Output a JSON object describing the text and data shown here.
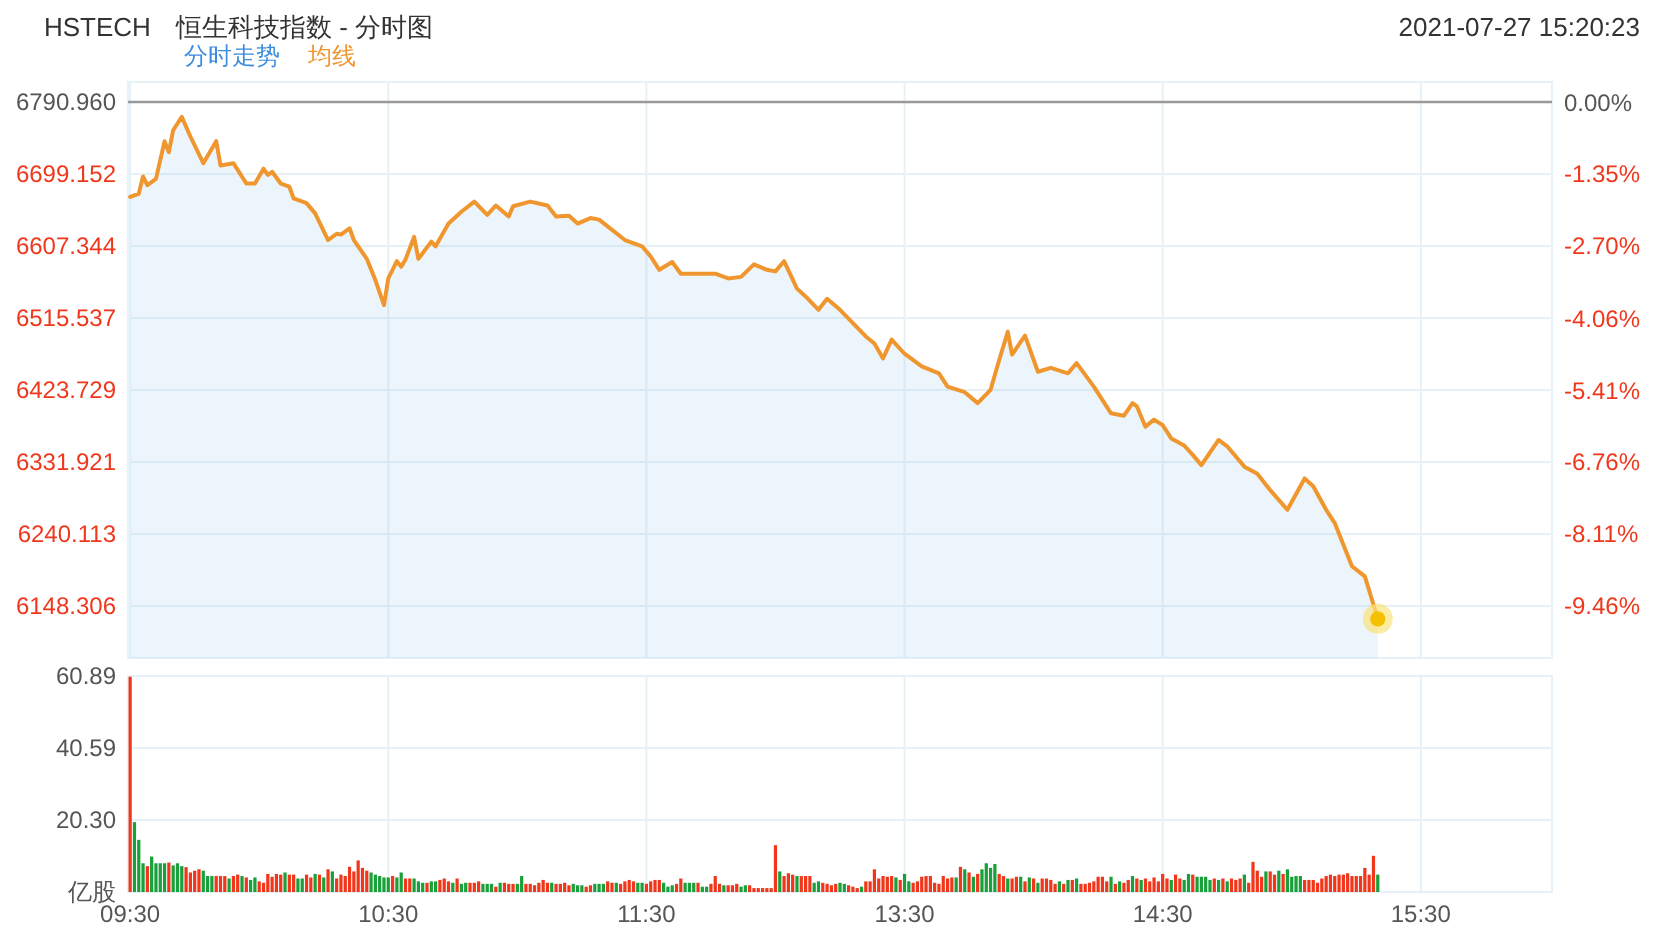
{
  "chart_data": [
    {
      "type": "area",
      "title": "HSTECH",
      "subtitle": "恒生科技指数 - 分时图",
      "annotations": [
        "2021-07-27 15:20:23"
      ],
      "categories": [
        null,
        null,
        null,
        null,
        null,
        null,
        null,
        null,
        null,
        null,
        null,
        null,
        null,
        null,
        null,
        null,
        null,
        null,
        null,
        null,
        null,
        null,
        null,
        null,
        null,
        null,
        null,
        null,
        null,
        null,
        null,
        null,
        null,
        null,
        null,
        null,
        null,
        null,
        null,
        null,
        null,
        null,
        null,
        null,
        null,
        null,
        null,
        null,
        null,
        null,
        null,
        null,
        null,
        null,
        null,
        null,
        null,
        null,
        null,
        null,
        null,
        null,
        null,
        null,
        null,
        null,
        null,
        null,
        null,
        null,
        null,
        null,
        null,
        null,
        null,
        null,
        null,
        null,
        null,
        null,
        null,
        null,
        null,
        null,
        null,
        null,
        null,
        null,
        null,
        null,
        null,
        null,
        null,
        null,
        null,
        null,
        null,
        null,
        null,
        null,
        null,
        null,
        null,
        null,
        null,
        null,
        null,
        null,
        null,
        null,
        null,
        null,
        null,
        null,
        null,
        null,
        null,
        null,
        null,
        null,
        null,
        null,
        null,
        null,
        null,
        null,
        null,
        null,
        null,
        null,
        null,
        null,
        null,
        null,
        null,
        null,
        null,
        null,
        null,
        null,
        null,
        null,
        null,
        null,
        null,
        null,
        null,
        null,
        null,
        null,
        null,
        null,
        null,
        null,
        null,
        null,
        null,
        null,
        null,
        null,
        null,
        null,
        null,
        null,
        null,
        null,
        null,
        null,
        null,
        null,
        null,
        null,
        null,
        null,
        null,
        null,
        null,
        null,
        null,
        null,
        null,
        null,
        null,
        null,
        null,
        null,
        null,
        null,
        null,
        null,
        null,
        null,
        null,
        null,
        null,
        null,
        null,
        null,
        null,
        null,
        null,
        null,
        null,
        null,
        null,
        null,
        null,
        null,
        null,
        null,
        null,
        null,
        null,
        null,
        null,
        null,
        null,
        null,
        null,
        null,
        null,
        null,
        null,
        null,
        null,
        null,
        null,
        null,
        null,
        null,
        null,
        null,
        null,
        null,
        null,
        null,
        null,
        null,
        null,
        null,
        null,
        null,
        null,
        null,
        null,
        null,
        null,
        null,
        null,
        null,
        null,
        null,
        null,
        null,
        null,
        null,
        null,
        null,
        null,
        null,
        null,
        null,
        null,
        null,
        null,
        null,
        null,
        null,
        null,
        null,
        null,
        null,
        null,
        null,
        null,
        null,
        null,
        null,
        null,
        null,
        null,
        null,
        null,
        null,
        null,
        null,
        null,
        null,
        null,
        null,
        null
      ],
      "series": [
        {
          "name": "分时走势",
          "color": "#3b8de0",
          "values": [
            6670,
            null,
            6674,
            6696,
            6685,
            null,
            6693,
            null,
            6741,
            6727,
            6755,
            null,
            6772,
            null,
            6747,
            null,
            null,
            6713,
            null,
            null,
            6741,
            6710,
            null,
            null,
            6713,
            null,
            null,
            6687,
            null,
            6687,
            null,
            6706,
            6698,
            6702,
            null,
            6687,
            null,
            6683,
            6668,
            null,
            null,
            6662,
            null,
            6649,
            null,
            null,
            6615,
            null,
            6623,
            6622,
            null,
            6630,
            6615,
            null,
            null,
            6591,
            null,
            6564,
            null,
            6532,
            6566,
            null,
            6588,
            6581,
            6590,
            null,
            6619,
            6591,
            null,
            null,
            6613,
            6607,
            null,
            null,
            6636,
            null,
            null,
            6651,
            null,
            null,
            6664,
            null,
            null,
            6647,
            null,
            6659,
            null,
            null,
            6645,
            6658,
            null,
            null,
            null,
            6664,
            null,
            null,
            null,
            6659,
            null,
            6645,
            null,
            null,
            6646,
            null,
            6636,
            null,
            null,
            6643,
            null,
            6641,
            null,
            null,
            null,
            null,
            null,
            6615,
            null,
            null,
            null,
            6607,
            null,
            6594,
            null,
            6577,
            null,
            null,
            6587,
            null,
            6572,
            null,
            null,
            null,
            null,
            null,
            null,
            null,
            6572,
            null,
            null,
            6566,
            null,
            null,
            6568,
            null,
            null,
            6584,
            null,
            null,
            6577,
            null,
            6575,
            null,
            6588,
            null,
            null,
            6553,
            null,
            6543,
            null,
            null,
            6526,
            null,
            6540,
            null,
            null,
            6526,
            null,
            null,
            6509,
            null,
            null,
            6492,
            null,
            6483,
            null,
            6464,
            null,
            6488,
            null,
            null,
            6470,
            null,
            null,
            null,
            6454,
            null,
            null,
            null,
            6445,
            null,
            6428,
            null,
            null,
            null,
            6421,
            null,
            null,
            6407,
            null,
            null,
            6424,
            null,
            6462,
            null,
            6498,
            6469,
            null,
            null,
            6493,
            null,
            null,
            6447,
            null,
            null,
            6452,
            null,
            null,
            null,
            6445,
            null,
            6458,
            null,
            null,
            null,
            6428,
            null,
            null,
            null,
            6394,
            null,
            null,
            6391,
            null,
            6407,
            6403,
            null,
            6377,
            null,
            6386,
            null,
            6379,
            null,
            6362,
            null,
            null,
            6353,
            null,
            6341,
            null,
            6328,
            null,
            null,
            null,
            6360,
            null,
            6352,
            null,
            null,
            null,
            6326,
            null,
            null,
            6317,
            null,
            null,
            6296,
            null,
            null,
            null,
            6271,
            null,
            null,
            null,
            6311,
            null,
            6301,
            null,
            null,
            6271,
            null,
            6254,
            null,
            null,
            null,
            6199,
            null,
            null,
            6186,
            null,
            null,
            6132
          ]
        },
        {
          "name": "均线",
          "type": "line",
          "color": "#f0962e",
          "values": [
            6670,
            null,
            6674,
            6696,
            6685,
            null,
            6693,
            null,
            6741,
            6727,
            6755,
            null,
            6772,
            null,
            6747,
            null,
            null,
            6713,
            null,
            null,
            6741,
            6710,
            null,
            null,
            6713,
            null,
            null,
            6687,
            null,
            6687,
            null,
            6706,
            6698,
            6702,
            null,
            6687,
            null,
            6683,
            6668,
            null,
            null,
            6662,
            null,
            6649,
            null,
            null,
            6615,
            null,
            6623,
            6622,
            null,
            6630,
            6615,
            null,
            null,
            6591,
            null,
            6564,
            null,
            6532,
            6566,
            null,
            6588,
            6581,
            6590,
            null,
            6619,
            6591,
            null,
            null,
            6613,
            6607,
            null,
            null,
            6636,
            null,
            null,
            6651,
            null,
            null,
            6664,
            null,
            null,
            6647,
            null,
            6659,
            null,
            null,
            6645,
            6658,
            null,
            null,
            null,
            6664,
            null,
            null,
            null,
            6659,
            null,
            6645,
            null,
            null,
            6646,
            null,
            6636,
            null,
            null,
            6643,
            null,
            6641,
            null,
            null,
            null,
            null,
            null,
            6615,
            null,
            null,
            null,
            6607,
            null,
            6594,
            null,
            6577,
            null,
            null,
            6587,
            null,
            6572,
            null,
            null,
            null,
            null,
            null,
            null,
            null,
            6572,
            null,
            null,
            6566,
            null,
            null,
            6568,
            null,
            null,
            6584,
            null,
            null,
            6577,
            null,
            6575,
            null,
            6588,
            null,
            null,
            6553,
            null,
            6543,
            null,
            null,
            6526,
            null,
            6540,
            null,
            null,
            6526,
            null,
            null,
            6509,
            null,
            null,
            6492,
            null,
            6483,
            null,
            6464,
            null,
            6488,
            null,
            null,
            6470,
            null,
            null,
            null,
            6454,
            null,
            null,
            null,
            6445,
            null,
            6428,
            null,
            null,
            null,
            6421,
            null,
            null,
            6407,
            null,
            null,
            6424,
            null,
            6462,
            null,
            6498,
            6469,
            null,
            null,
            6493,
            null,
            null,
            6447,
            null,
            null,
            6452,
            null,
            null,
            null,
            6445,
            null,
            6458,
            null,
            null,
            null,
            6428,
            null,
            null,
            null,
            6394,
            null,
            null,
            6391,
            null,
            6407,
            6403,
            null,
            6377,
            null,
            6386,
            null,
            6379,
            null,
            6362,
            null,
            null,
            6353,
            null,
            6341,
            null,
            6328,
            null,
            null,
            null,
            6360,
            null,
            6352,
            null,
            null,
            null,
            6326,
            null,
            null,
            6317,
            null,
            null,
            6296,
            null,
            null,
            null,
            6271,
            null,
            null,
            null,
            6311,
            null,
            6301,
            null,
            null,
            6271,
            null,
            6254,
            null,
            null,
            null,
            6199,
            null,
            null,
            6186,
            null,
            null,
            6132
          ]
        }
      ],
      "ylim": [
        6082,
        6816.5
      ],
      "yticks": [
        {
          "value": 6790.96,
          "label": "6790.960"
        },
        6699.152,
        6607.344,
        6515.537,
        6423.729,
        6331.921,
        6240.113,
        6148.306
      ],
      "y2lim": [
        -10.44,
        0.38
      ],
      "y2ticks": [
        {
          "value": 0,
          "label": "0.00%"
        },
        {
          "value": -1.35,
          "label": "-1.35%"
        },
        {
          "value": -2.7,
          "label": "-2.70%"
        },
        {
          "value": -4.06,
          "label": "-4.06%"
        },
        {
          "value": -5.41,
          "label": "-5.41%"
        },
        {
          "value": -6.76,
          "label": "-6.76%"
        },
        {
          "value": -8.11,
          "label": "-8.11%"
        },
        {
          "value": -9.46,
          "label": "-9.46%"
        }
      ],
      "ref_lines": [
        {
          "axis": "y",
          "value": 6790.96,
          "color": "#999999"
        }
      ],
      "tick_labels": "y",
      "grid": true,
      "legend": "top left"
    },
    {
      "type": "bar",
      "categories": [
        "09:30",
        null,
        null,
        null,
        null,
        null,
        null,
        null,
        null,
        null,
        null,
        null,
        null,
        null,
        null,
        null,
        null,
        null,
        null,
        null,
        null,
        null,
        null,
        null,
        null,
        null,
        null,
        null,
        null,
        null,
        null,
        null,
        null,
        null,
        null,
        null,
        null,
        null,
        null,
        null,
        null,
        null,
        null,
        null,
        null,
        null,
        null,
        null,
        null,
        null,
        null,
        null,
        null,
        null,
        null,
        null,
        null,
        null,
        null,
        null,
        "10:30",
        null,
        null,
        null,
        null,
        null,
        null,
        null,
        null,
        null,
        null,
        null,
        null,
        null,
        null,
        null,
        null,
        null,
        null,
        null,
        null,
        null,
        null,
        null,
        null,
        null,
        null,
        null,
        null,
        null,
        null,
        null,
        null,
        null,
        null,
        null,
        null,
        null,
        null,
        null,
        null,
        null,
        null,
        null,
        null,
        null,
        null,
        null,
        null,
        null,
        null,
        null,
        null,
        null,
        null,
        null,
        null,
        null,
        null,
        null,
        "11:30",
        null,
        null,
        null,
        null,
        null,
        null,
        null,
        null,
        null,
        null,
        null,
        null,
        null,
        null,
        null,
        null,
        null,
        null,
        null,
        null,
        null,
        null,
        null,
        null,
        null,
        null,
        null,
        null,
        null,
        null,
        null,
        null,
        null,
        null,
        null,
        null,
        null,
        null,
        null,
        null,
        null,
        null,
        null,
        null,
        null,
        null,
        null,
        null,
        null,
        null,
        null,
        null,
        null,
        null,
        null,
        null,
        null,
        null,
        null,
        "13:30",
        null,
        null,
        null,
        null,
        null,
        null,
        null,
        null,
        null,
        null,
        null,
        null,
        null,
        null,
        null,
        null,
        null,
        null,
        null,
        null,
        null,
        null,
        null,
        null,
        null,
        null,
        null,
        null,
        null,
        null,
        null,
        null,
        null,
        null,
        null,
        null,
        null,
        null,
        null,
        null,
        null,
        null,
        null,
        null,
        null,
        null,
        null,
        null,
        null,
        null,
        null,
        null,
        null,
        null,
        null,
        null,
        null,
        null,
        null,
        "14:30",
        null,
        null,
        null,
        null,
        null,
        null,
        null,
        null,
        null,
        null,
        null,
        null,
        null,
        null,
        null,
        null,
        null,
        null,
        null,
        null,
        null,
        null,
        null,
        null,
        null,
        null,
        null,
        null,
        null,
        null,
        null,
        null,
        null,
        null,
        null,
        null,
        null,
        null,
        null,
        null,
        null,
        null,
        null,
        null,
        null,
        null,
        null,
        null,
        null,
        null,
        null,
        null,
        null,
        null,
        null,
        null,
        null,
        null,
        null,
        "15:30",
        null,
        null,
        null,
        null,
        null,
        null,
        null,
        null,
        null,
        null,
        null,
        null,
        null,
        null,
        null,
        null,
        null,
        null,
        null,
        null,
        null,
        null,
        null,
        null,
        null,
        null,
        null,
        null,
        null,
        null
      ],
      "values": [
        60.7,
        19.7,
        14.7,
        8.1,
        7.3,
        10.0,
        8.1,
        8.1,
        8.1,
        8.3,
        7.5,
        8.1,
        7.3,
        7.0,
        5.5,
        6.0,
        6.4,
        6.0,
        4.5,
        4.5,
        4.5,
        4.5,
        4.5,
        3.8,
        4.5,
        4.9,
        4.5,
        4.1,
        3.4,
        4.1,
        3.0,
        2.6,
        5.1,
        4.3,
        5.1,
        4.9,
        5.5,
        4.9,
        4.9,
        3.8,
        3.8,
        4.9,
        4.1,
        5.1,
        4.9,
        4.1,
        6.4,
        5.8,
        3.8,
        4.9,
        4.5,
        7.1,
        5.8,
        8.9,
        6.8,
        6.0,
        5.5,
        4.9,
        4.5,
        4.1,
        4.1,
        4.5,
        4.1,
        5.5,
        3.8,
        3.8,
        3.8,
        3.0,
        2.6,
        2.6,
        3.0,
        3.0,
        3.4,
        3.8,
        3.0,
        2.6,
        3.8,
        2.3,
        2.6,
        2.6,
        2.6,
        3.0,
        2.3,
        2.3,
        2.3,
        1.5,
        2.6,
        2.6,
        2.3,
        2.3,
        2.3,
        4.5,
        2.3,
        2.3,
        1.9,
        2.6,
        3.4,
        2.6,
        2.6,
        2.3,
        2.3,
        2.6,
        1.9,
        2.3,
        1.9,
        1.9,
        1.5,
        1.9,
        2.3,
        2.3,
        2.3,
        3.0,
        2.6,
        2.6,
        2.3,
        3.0,
        3.4,
        3.0,
        2.6,
        2.6,
        2.3,
        3.0,
        3.4,
        3.4,
        2.6,
        1.5,
        1.9,
        2.3,
        3.8,
        2.6,
        2.6,
        2.6,
        2.6,
        1.5,
        1.5,
        2.3,
        4.5,
        2.3,
        1.9,
        1.9,
        1.9,
        2.3,
        1.5,
        1.9,
        1.9,
        1.1,
        1.1,
        1.1,
        1.1,
        1.1,
        13.2,
        5.8,
        4.5,
        5.3,
        4.9,
        4.5,
        4.5,
        4.5,
        4.5,
        2.6,
        3.0,
        2.6,
        2.3,
        1.9,
        2.3,
        2.6,
        2.3,
        1.9,
        1.5,
        1.1,
        1.5,
        3.0,
        3.0,
        6.4,
        3.8,
        4.5,
        4.3,
        4.5,
        4.1,
        3.4,
        5.1,
        3.0,
        2.6,
        3.0,
        4.3,
        4.5,
        4.5,
        2.6,
        2.3,
        4.5,
        3.8,
        4.1,
        4.1,
        7.1,
        6.4,
        5.5,
        4.3,
        5.1,
        6.4,
        8.1,
        6.8,
        7.9,
        5.1,
        4.5,
        3.8,
        3.8,
        4.3,
        4.3,
        3.0,
        4.1,
        3.8,
        2.6,
        3.8,
        3.8,
        3.4,
        2.3,
        3.0,
        2.3,
        3.4,
        3.4,
        3.8,
        2.3,
        2.3,
        2.6,
        3.0,
        4.3,
        4.3,
        3.0,
        4.3,
        2.3,
        3.0,
        2.6,
        3.4,
        4.5,
        3.8,
        3.4,
        3.8,
        3.0,
        4.1,
        3.0,
        5.1,
        3.8,
        3.4,
        4.9,
        3.8,
        3.4,
        5.1,
        4.9,
        4.3,
        4.3,
        4.3,
        3.4,
        3.8,
        3.4,
        3.8,
        3.0,
        3.8,
        3.4,
        3.8,
        4.9,
        2.6,
        8.5,
        6.0,
        4.3,
        5.8,
        5.8,
        4.9,
        6.0,
        5.1,
        6.4,
        4.3,
        4.5,
        4.5,
        3.4,
        3.4,
        3.4,
        2.6,
        3.8,
        4.5,
        4.9,
        4.5,
        4.9,
        4.9,
        5.3,
        4.5,
        4.5,
        4.5,
        6.8,
        4.9,
        10.2,
        4.9,
        null,
        null,
        null,
        null,
        null,
        null,
        null,
        null,
        null,
        null,
        null,
        null,
        null,
        null,
        null,
        null,
        null,
        null,
        null,
        null,
        null,
        null,
        null,
        null,
        null,
        null,
        null,
        null,
        null,
        null,
        null,
        null,
        null,
        null,
        null,
        null,
        null,
        null,
        null,
        null
      ],
      "colors": [
        "#f0371c",
        "#1aa03a",
        "#1aa03a",
        "#1aa03a",
        "#f0371c",
        "#1aa03a",
        "#1aa03a",
        "#1aa03a",
        "#1aa03a",
        "#f0371c",
        "#1aa03a",
        "#1aa03a",
        "#1aa03a",
        "#f0371c",
        "#f0371c",
        "#f0371c",
        "#f0371c",
        "#1aa03a",
        "#1aa03a",
        "#1aa03a",
        "#f0371c",
        "#f0371c",
        "#f0371c",
        "#1aa03a",
        "#f0371c",
        "#f0371c",
        "#1aa03a",
        "#f0371c",
        "#1aa03a",
        "#1aa03a",
        "#f0371c",
        "#f0371c",
        "#f0371c",
        "#f0371c",
        "#f0371c",
        "#f0371c",
        "#1aa03a",
        "#f0371c",
        "#f0371c",
        "#1aa03a",
        "#1aa03a",
        "#f0371c",
        "#f0371c",
        "#1aa03a",
        "#f0371c",
        "#1aa03a",
        "#f0371c",
        "#1aa03a",
        "#f0371c",
        "#f0371c",
        "#f0371c",
        "#f0371c",
        "#f0371c",
        "#f0371c",
        "#f0371c",
        "#f0371c",
        "#1aa03a",
        "#1aa03a",
        "#1aa03a",
        "#1aa03a",
        "#1aa03a",
        "#f0371c",
        "#1aa03a",
        "#1aa03a",
        "#f0371c",
        "#f0371c",
        "#1aa03a",
        "#1aa03a",
        "#1aa03a",
        "#f0371c",
        "#1aa03a",
        "#1aa03a",
        "#f0371c",
        "#f0371c",
        "#f0371c",
        "#1aa03a",
        "#f0371c",
        "#1aa03a",
        "#1aa03a",
        "#f0371c",
        "#f0371c",
        "#f0371c",
        "#1aa03a",
        "#1aa03a",
        "#1aa03a",
        "#f0371c",
        "#1aa03a",
        "#f0371c",
        "#f0371c",
        "#f0371c",
        "#1aa03a",
        "#1aa03a",
        "#f0371c",
        "#f0371c",
        "#f0371c",
        "#f0371c",
        "#f0371c",
        "#f0371c",
        "#1aa03a",
        "#f0371c",
        "#f0371c",
        "#f0371c",
        "#f0371c",
        "#1aa03a",
        "#1aa03a",
        "#1aa03a",
        "#f0371c",
        "#f0371c",
        "#1aa03a",
        "#1aa03a",
        "#1aa03a",
        "#f0371c",
        "#f0371c",
        "#1aa03a",
        "#f0371c",
        "#f0371c",
        "#f0371c",
        "#f0371c",
        "#1aa03a",
        "#1aa03a",
        "#f0371c",
        "#f0371c",
        "#f0371c",
        "#f0371c",
        "#1aa03a",
        "#1aa03a",
        "#1aa03a",
        "#f0371c",
        "#f0371c",
        "#1aa03a",
        "#1aa03a",
        "#1aa03a",
        "#f0371c",
        "#1aa03a",
        "#1aa03a",
        "#f0371c",
        "#f0371c",
        "#f0371c",
        "#1aa03a",
        "#f0371c",
        "#f0371c",
        "#f0371c",
        "#1aa03a",
        "#1aa03a",
        "#f0371c",
        "#f0371c",
        "#f0371c",
        "#f0371c",
        "#f0371c",
        "#f0371c",
        "#f0371c",
        "#1aa03a",
        "#f0371c",
        "#f0371c",
        "#f0371c",
        "#1aa03a",
        "#f0371c",
        "#f0371c",
        "#f0371c",
        "#1aa03a",
        "#1aa03a",
        "#f0371c",
        "#f0371c",
        "#f0371c",
        "#f0371c",
        "#1aa03a",
        "#1aa03a",
        "#f0371c",
        "#f0371c",
        "#f0371c",
        "#1aa03a",
        "#f0371c",
        "#f0371c",
        "#f0371c",
        "#f0371c",
        "#f0371c",
        "#f0371c",
        "#f0371c",
        "#1aa03a",
        "#f0371c",
        "#1aa03a",
        "#1aa03a",
        "#f0371c",
        "#f0371c",
        "#f0371c",
        "#f0371c",
        "#f0371c",
        "#f0371c",
        "#f0371c",
        "#f0371c",
        "#f0371c",
        "#f0371c",
        "#1aa03a",
        "#f0371c",
        "#1aa03a",
        "#f0371c",
        "#1aa03a",
        "#f0371c",
        "#1aa03a",
        "#1aa03a",
        "#1aa03a",
        "#1aa03a",
        "#f0371c",
        "#f0371c",
        "#1aa03a",
        "#f0371c",
        "#f0371c",
        "#1aa03a",
        "#f0371c",
        "#1aa03a",
        "#f0371c",
        "#1aa03a",
        "#f0371c",
        "#f0371c",
        "#f0371c",
        "#f0371c",
        "#1aa03a",
        "#f0371c",
        "#1aa03a",
        "#f0371c",
        "#1aa03a",
        "#f0371c",
        "#f0371c",
        "#f0371c",
        "#f0371c",
        "#f0371c",
        "#f0371c",
        "#f0371c",
        "#1aa03a",
        "#f0371c",
        "#1aa03a",
        "#f0371c",
        "#f0371c",
        "#1aa03a",
        "#f0371c",
        "#1aa03a",
        "#f0371c",
        "#f0371c",
        "#f0371c",
        "#f0371c",
        "#f0371c",
        "#f0371c",
        "#1aa03a",
        "#f0371c",
        "#f0371c",
        "#1aa03a",
        "#1aa03a",
        "#f0371c",
        "#1aa03a",
        "#1aa03a",
        "#1aa03a",
        "#1aa03a",
        "#f0371c",
        "#1aa03a",
        "#f0371c",
        "#1aa03a",
        "#f0371c",
        "#f0371c",
        "#f0371c",
        "#1aa03a",
        "#f0371c",
        "#f0371c",
        "#f0371c",
        "#f0371c",
        "#1aa03a",
        "#f0371c",
        "#f0371c",
        "#1aa03a",
        "#f0371c",
        "#1aa03a",
        "#1aa03a",
        "#1aa03a",
        "#1aa03a",
        "#f0371c",
        "#f0371c",
        "#f0371c",
        "#f0371c",
        "#f0371c",
        "#f0371c",
        "#f0371c",
        "#f0371c",
        "#f0371c",
        "#f0371c",
        "#f0371c",
        "#f0371c",
        "#f0371c",
        "#f0371c",
        "#f0371c",
        "#f0371c",
        "#f0371c",
        "#1aa03a",
        null,
        null,
        null,
        null,
        null,
        null,
        null,
        null,
        null,
        null,
        null,
        null,
        null,
        null,
        null,
        null,
        null,
        null,
        null,
        null,
        null,
        null,
        null,
        null,
        null,
        null,
        null,
        null,
        null,
        null,
        null,
        null,
        null,
        null,
        null,
        null,
        null,
        null,
        null,
        null
      ],
      "ylim": [
        0,
        60.89
      ],
      "yticks": [
        {
          "value": 0,
          "label": "亿股"
        },
        {
          "value": 20.3,
          "label": "20.30"
        },
        40.59,
        60.89
      ],
      "grid": true
    }
  ]
}
